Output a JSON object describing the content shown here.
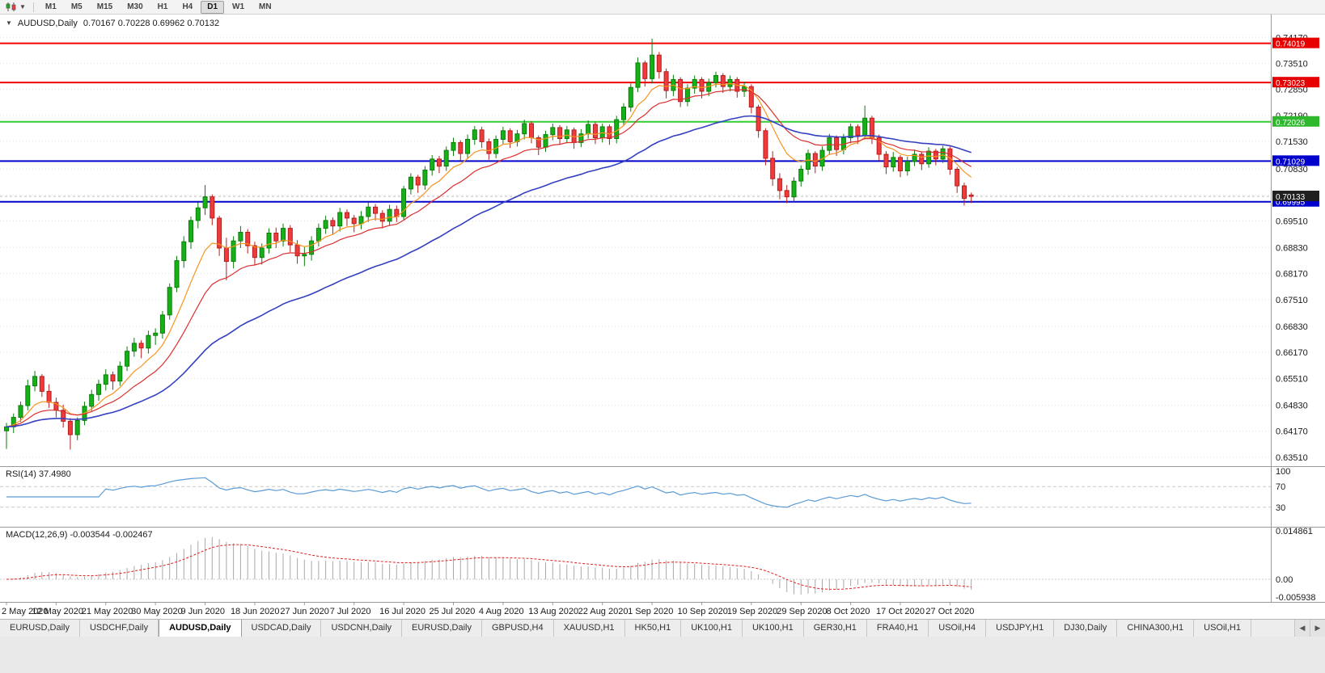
{
  "window": {
    "toolbar": {
      "chart_type_icon": "candlestick-chart-icon",
      "dropdown_icon": "chevron-down-icon",
      "timeframes": [
        "M1",
        "M5",
        "M15",
        "M30",
        "H1",
        "H4",
        "D1",
        "W1",
        "MN"
      ],
      "active_timeframe": "D1"
    },
    "tabs": {
      "items": [
        "EURUSD,Daily",
        "USDCHF,Daily",
        "AUDUSD,Daily",
        "USDCAD,Daily",
        "USDCNH,Daily",
        "EURUSD,Daily",
        "GBPUSD,H4",
        "XAUUSD,H1",
        "HK50,H1",
        "UK100,H1",
        "UK100,H1",
        "GER30,H1",
        "FRA40,H1",
        "USOil,H4",
        "USDJPY,H1",
        "DJ30,Daily",
        "CHINA300,H1",
        "USOil,H1"
      ],
      "active_index": 2,
      "scroll_left_icon": "◀",
      "scroll_right_icon": "▶"
    }
  },
  "chart": {
    "collapse_icon": "▼",
    "title": "AUDUSD,Daily",
    "ohlc": "0.70167 0.70228 0.69962 0.70132",
    "current_price_badge": {
      "value": "0.70133",
      "bg": "#1f1f1f",
      "fg": "#ffffff"
    }
  },
  "rsi_panel": {
    "label": "RSI(14) 37.4980",
    "period": 14,
    "current": "37.4980",
    "levels": [
      "100",
      "70",
      "30"
    ],
    "line_color": "#5b9bd5"
  },
  "macd_panel": {
    "label": "MACD(12,26,9) -0.003544 -0.002467",
    "fast": 12,
    "slow": 26,
    "signal": 9,
    "current_main": "-0.003544",
    "current_signal": "-0.002467",
    "axis_labels": [
      "0.014861",
      "0.00",
      "-0.005938"
    ],
    "histogram_color": "#a9a9a9",
    "signal_color": "#e02020"
  },
  "chart_data": {
    "type": "candlestick",
    "symbol": "AUDUSD",
    "timeframe": "Daily",
    "ohlc_current": {
      "open": 0.70167,
      "high": 0.70228,
      "low": 0.69962,
      "close": 0.70132
    },
    "y_range": [
      0.6328,
      0.7475
    ],
    "price_axis_labels": [
      "0.74170",
      "0.73510",
      "0.72850",
      "0.72190",
      "0.71530",
      "0.70830",
      "0.70170",
      "0.69510",
      "0.68830",
      "0.68170",
      "0.67510",
      "0.66830",
      "0.66170",
      "0.65510",
      "0.64830",
      "0.64170",
      "0.63510"
    ],
    "x_ticks": [
      {
        "i": 0,
        "label": "2 May 2020"
      },
      {
        "i": 7,
        "label": "12 May 2020"
      },
      {
        "i": 14,
        "label": "21 May 2020"
      },
      {
        "i": 21,
        "label": "30 May 2020"
      },
      {
        "i": 28,
        "label": "9 Jun 2020"
      },
      {
        "i": 35,
        "label": "18 Jun 2020"
      },
      {
        "i": 42,
        "label": "27 Jun 2020"
      },
      {
        "i": 49,
        "label": "7 Jul 2020"
      },
      {
        "i": 56,
        "label": "16 Jul 2020"
      },
      {
        "i": 63,
        "label": "25 Jul 2020"
      },
      {
        "i": 70,
        "label": "4 Aug 2020"
      },
      {
        "i": 77,
        "label": "13 Aug 2020"
      },
      {
        "i": 84,
        "label": "22 Aug 2020"
      },
      {
        "i": 91,
        "label": "1 Sep 2020"
      },
      {
        "i": 98,
        "label": "10 Sep 2020"
      },
      {
        "i": 105,
        "label": "19 Sep 2020"
      },
      {
        "i": 112,
        "label": "29 Sep 2020"
      },
      {
        "i": 119,
        "label": "8 Oct 2020"
      },
      {
        "i": 126,
        "label": "17 Oct 2020"
      },
      {
        "i": 133,
        "label": "27 Oct 2020"
      }
    ],
    "hlines": [
      {
        "price": 0.74019,
        "color": "#f00000",
        "label": "0.74019",
        "badge_bg": "#e60000"
      },
      {
        "price": 0.73023,
        "color": "#f00000",
        "label": "0.73023",
        "badge_bg": "#e60000"
      },
      {
        "price": 0.72026,
        "color": "#33cc33",
        "label": "0.72026",
        "badge_bg": "#2eb82e"
      },
      {
        "price": 0.71029,
        "color": "#0000cc",
        "label": "0.71029",
        "badge_bg": "#0000cc"
      },
      {
        "price": 0.69995,
        "color": "#0000cc",
        "label": "0.69995",
        "badge_bg": "#0000cc"
      }
    ],
    "moving_averages": [
      {
        "name": "fast",
        "period": 8,
        "color": "#f79420",
        "width": 1.2
      },
      {
        "name": "medium",
        "period": 16,
        "color": "#dd2f2f",
        "width": 1.2
      },
      {
        "name": "slow",
        "period": 40,
        "color": "#3340c0",
        "width": 1.6
      }
    ],
    "indicators": [
      {
        "name": "RSI",
        "period": 14,
        "current": 37.498
      },
      {
        "name": "MACD",
        "fast": 12,
        "slow": 26,
        "signal": 9,
        "current_main": -0.003544,
        "current_signal": -0.002467
      }
    ],
    "colors": {
      "up_fill": "#16b116",
      "up_stroke": "#0b7d0b",
      "down_fill": "#ef3b3b",
      "down_stroke": "#b51f1f",
      "grid": "#e3e3e3",
      "background": "#ffffff"
    },
    "candles": [
      [
        0.6418,
        0.6438,
        0.6372,
        0.6428
      ],
      [
        0.6428,
        0.6462,
        0.6412,
        0.6452
      ],
      [
        0.6452,
        0.6492,
        0.644,
        0.6482
      ],
      [
        0.6482,
        0.6548,
        0.647,
        0.6532
      ],
      [
        0.6532,
        0.657,
        0.6518,
        0.6556
      ],
      [
        0.6556,
        0.6562,
        0.6504,
        0.6518
      ],
      [
        0.6518,
        0.6536,
        0.6476,
        0.649
      ],
      [
        0.649,
        0.6502,
        0.6452,
        0.647
      ],
      [
        0.647,
        0.6484,
        0.6426,
        0.6442
      ],
      [
        0.6442,
        0.645,
        0.637,
        0.6408
      ],
      [
        0.6408,
        0.6452,
        0.6394,
        0.6444
      ],
      [
        0.6444,
        0.6492,
        0.6432,
        0.648
      ],
      [
        0.648,
        0.6522,
        0.6468,
        0.651
      ],
      [
        0.651,
        0.6548,
        0.6494,
        0.6536
      ],
      [
        0.6536,
        0.6574,
        0.652,
        0.656
      ],
      [
        0.656,
        0.6568,
        0.6522,
        0.6544
      ],
      [
        0.6544,
        0.6594,
        0.6532,
        0.6582
      ],
      [
        0.6582,
        0.6632,
        0.657,
        0.662
      ],
      [
        0.662,
        0.6654,
        0.6606,
        0.664
      ],
      [
        0.664,
        0.6648,
        0.6602,
        0.6628
      ],
      [
        0.6628,
        0.6672,
        0.6614,
        0.666
      ],
      [
        0.666,
        0.6678,
        0.6636,
        0.6666
      ],
      [
        0.6666,
        0.6722,
        0.6652,
        0.6712
      ],
      [
        0.6712,
        0.6792,
        0.67,
        0.6782
      ],
      [
        0.6782,
        0.6862,
        0.677,
        0.685
      ],
      [
        0.685,
        0.6912,
        0.6832,
        0.6898
      ],
      [
        0.6898,
        0.6962,
        0.688,
        0.6952
      ],
      [
        0.6952,
        0.6998,
        0.6932,
        0.6984
      ],
      [
        0.6984,
        0.7042,
        0.6966,
        0.7012
      ],
      [
        0.7012,
        0.7018,
        0.694,
        0.6958
      ],
      [
        0.6958,
        0.6964,
        0.6862,
        0.6882
      ],
      [
        0.6882,
        0.6908,
        0.68,
        0.6848
      ],
      [
        0.6848,
        0.6912,
        0.683,
        0.69
      ],
      [
        0.69,
        0.6938,
        0.6882,
        0.6922
      ],
      [
        0.6922,
        0.693,
        0.6868,
        0.6888
      ],
      [
        0.6888,
        0.6898,
        0.6838,
        0.6858
      ],
      [
        0.6858,
        0.6894,
        0.684,
        0.6882
      ],
      [
        0.6882,
        0.6932,
        0.6868,
        0.692
      ],
      [
        0.692,
        0.6934,
        0.6882,
        0.69
      ],
      [
        0.69,
        0.6944,
        0.6886,
        0.6932
      ],
      [
        0.6932,
        0.694,
        0.6872,
        0.689
      ],
      [
        0.689,
        0.6902,
        0.6842,
        0.6862
      ],
      [
        0.6862,
        0.6884,
        0.6836,
        0.6866
      ],
      [
        0.6866,
        0.6912,
        0.685,
        0.69
      ],
      [
        0.69,
        0.6944,
        0.6886,
        0.6932
      ],
      [
        0.6932,
        0.6964,
        0.6918,
        0.6952
      ],
      [
        0.6952,
        0.696,
        0.6916,
        0.6938
      ],
      [
        0.6938,
        0.6984,
        0.6924,
        0.6972
      ],
      [
        0.6972,
        0.698,
        0.6938,
        0.6958
      ],
      [
        0.6958,
        0.6966,
        0.6922,
        0.6944
      ],
      [
        0.6944,
        0.6976,
        0.693,
        0.6962
      ],
      [
        0.6962,
        0.6998,
        0.6948,
        0.6986
      ],
      [
        0.6986,
        0.6994,
        0.6952,
        0.697
      ],
      [
        0.697,
        0.6978,
        0.6932,
        0.695
      ],
      [
        0.695,
        0.6992,
        0.6938,
        0.698
      ],
      [
        0.698,
        0.699,
        0.6948,
        0.6962
      ],
      [
        0.6962,
        0.704,
        0.6952,
        0.7032
      ],
      [
        0.7032,
        0.7072,
        0.7018,
        0.7062
      ],
      [
        0.7062,
        0.7068,
        0.7022,
        0.7042
      ],
      [
        0.7042,
        0.709,
        0.703,
        0.708
      ],
      [
        0.708,
        0.7118,
        0.7066,
        0.7108
      ],
      [
        0.7108,
        0.7116,
        0.7072,
        0.709
      ],
      [
        0.709,
        0.714,
        0.7078,
        0.713
      ],
      [
        0.713,
        0.7162,
        0.7116,
        0.715
      ],
      [
        0.715,
        0.7156,
        0.7104,
        0.7122
      ],
      [
        0.7122,
        0.717,
        0.711,
        0.7158
      ],
      [
        0.7158,
        0.7192,
        0.7144,
        0.7182
      ],
      [
        0.7182,
        0.719,
        0.7136,
        0.7152
      ],
      [
        0.7152,
        0.716,
        0.7106,
        0.7122
      ],
      [
        0.7122,
        0.7168,
        0.711,
        0.7158
      ],
      [
        0.7158,
        0.719,
        0.7146,
        0.718
      ],
      [
        0.718,
        0.7186,
        0.7136,
        0.7152
      ],
      [
        0.7152,
        0.7182,
        0.714,
        0.7172
      ],
      [
        0.7172,
        0.7208,
        0.7158,
        0.7198
      ],
      [
        0.7198,
        0.7204,
        0.7148,
        0.7162
      ],
      [
        0.7162,
        0.7168,
        0.7118,
        0.7138
      ],
      [
        0.7138,
        0.718,
        0.7126,
        0.717
      ],
      [
        0.717,
        0.7198,
        0.7156,
        0.7188
      ],
      [
        0.7188,
        0.7194,
        0.7144,
        0.716
      ],
      [
        0.716,
        0.7192,
        0.7148,
        0.7182
      ],
      [
        0.7182,
        0.7188,
        0.7134,
        0.715
      ],
      [
        0.715,
        0.7184,
        0.7138,
        0.7172
      ],
      [
        0.7172,
        0.7206,
        0.716,
        0.7196
      ],
      [
        0.7196,
        0.7202,
        0.7146,
        0.7162
      ],
      [
        0.7162,
        0.7198,
        0.715,
        0.719
      ],
      [
        0.719,
        0.7196,
        0.7144,
        0.716
      ],
      [
        0.716,
        0.7218,
        0.7148,
        0.7208
      ],
      [
        0.7208,
        0.725,
        0.7194,
        0.724
      ],
      [
        0.724,
        0.73,
        0.7228,
        0.729
      ],
      [
        0.729,
        0.7366,
        0.7278,
        0.7352
      ],
      [
        0.7352,
        0.7358,
        0.7292,
        0.7312
      ],
      [
        0.7312,
        0.7414,
        0.73,
        0.7372
      ],
      [
        0.7372,
        0.738,
        0.7312,
        0.733
      ],
      [
        0.733,
        0.7338,
        0.7262,
        0.7282
      ],
      [
        0.7282,
        0.7322,
        0.7268,
        0.731
      ],
      [
        0.731,
        0.7316,
        0.724,
        0.7254
      ],
      [
        0.7254,
        0.7298,
        0.7242,
        0.7288
      ],
      [
        0.7288,
        0.732,
        0.7274,
        0.731
      ],
      [
        0.731,
        0.7316,
        0.7262,
        0.728
      ],
      [
        0.728,
        0.7312,
        0.7268,
        0.7302
      ],
      [
        0.7302,
        0.733,
        0.729,
        0.732
      ],
      [
        0.732,
        0.7326,
        0.7276,
        0.7292
      ],
      [
        0.7292,
        0.732,
        0.728,
        0.731
      ],
      [
        0.731,
        0.7316,
        0.7264,
        0.728
      ],
      [
        0.728,
        0.7304,
        0.7266,
        0.7292
      ],
      [
        0.7292,
        0.7298,
        0.7224,
        0.724
      ],
      [
        0.724,
        0.7246,
        0.7162,
        0.718
      ],
      [
        0.718,
        0.7186,
        0.7092,
        0.711
      ],
      [
        0.711,
        0.7128,
        0.704,
        0.7058
      ],
      [
        0.7058,
        0.7072,
        0.7006,
        0.7028
      ],
      [
        0.7028,
        0.7042,
        0.6996,
        0.7012
      ],
      [
        0.7012,
        0.7062,
        0.7,
        0.7052
      ],
      [
        0.7052,
        0.7092,
        0.7038,
        0.7082
      ],
      [
        0.7082,
        0.7132,
        0.7068,
        0.7122
      ],
      [
        0.7122,
        0.7128,
        0.7072,
        0.709
      ],
      [
        0.709,
        0.714,
        0.7078,
        0.713
      ],
      [
        0.713,
        0.7172,
        0.7118,
        0.7162
      ],
      [
        0.7162,
        0.7168,
        0.7116,
        0.7132
      ],
      [
        0.7132,
        0.7172,
        0.712,
        0.7162
      ],
      [
        0.7162,
        0.7198,
        0.7148,
        0.719
      ],
      [
        0.719,
        0.7196,
        0.7146,
        0.7168
      ],
      [
        0.7168,
        0.7244,
        0.7158,
        0.7212
      ],
      [
        0.7212,
        0.7218,
        0.7146,
        0.7162
      ],
      [
        0.7162,
        0.717,
        0.7104,
        0.712
      ],
      [
        0.712,
        0.7128,
        0.707,
        0.7088
      ],
      [
        0.7088,
        0.7126,
        0.7076,
        0.7112
      ],
      [
        0.7112,
        0.7118,
        0.7062,
        0.7078
      ],
      [
        0.7078,
        0.7114,
        0.7066,
        0.7102
      ],
      [
        0.7102,
        0.7132,
        0.709,
        0.712
      ],
      [
        0.712,
        0.7126,
        0.708,
        0.7096
      ],
      [
        0.7096,
        0.7138,
        0.7086,
        0.7128
      ],
      [
        0.7128,
        0.7134,
        0.7092,
        0.7108
      ],
      [
        0.7108,
        0.7142,
        0.7098,
        0.7134
      ],
      [
        0.7134,
        0.714,
        0.7068,
        0.7082
      ],
      [
        0.7082,
        0.7088,
        0.7022,
        0.704
      ],
      [
        0.704,
        0.7048,
        0.699,
        0.7008
      ],
      [
        0.70167,
        0.70228,
        0.69962,
        0.70132
      ]
    ]
  }
}
